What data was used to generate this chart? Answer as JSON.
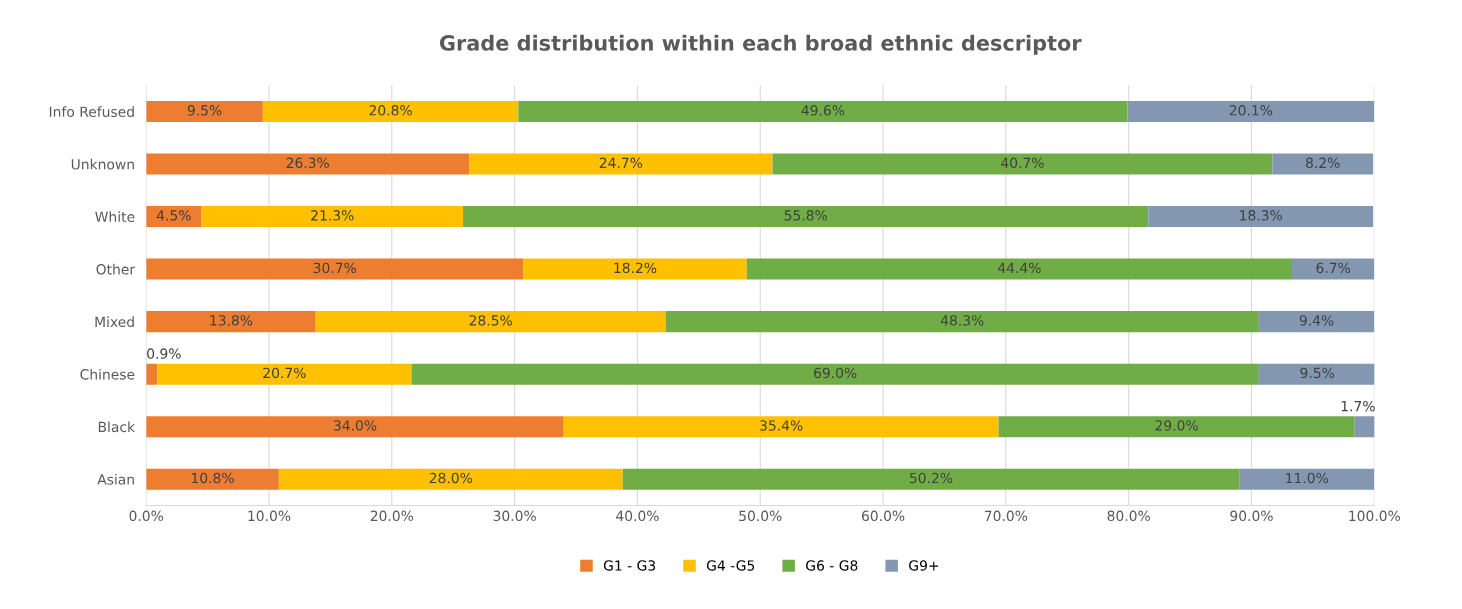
{
  "chart_data": {
    "type": "bar",
    "orientation": "horizontal",
    "stacked": true,
    "title": "Grade distribution within each broad ethnic descriptor",
    "categories": [
      "Info Refused",
      "Unknown",
      "White",
      "Other",
      "Mixed",
      "Chinese",
      "Black",
      "Asian"
    ],
    "series": [
      {
        "name": "G1 - G3",
        "color": "#ed7d31",
        "values": [
          9.5,
          26.3,
          4.5,
          30.7,
          13.8,
          0.9,
          34.0,
          10.8
        ],
        "value_labels": [
          "9.5%",
          "26.3%",
          "4.5%",
          "30.7%",
          "13.8%",
          "0.9%",
          "34.0%",
          "10.8%"
        ]
      },
      {
        "name": "G4 -G5",
        "color": "#ffc000",
        "values": [
          20.8,
          24.7,
          21.3,
          18.2,
          28.5,
          20.7,
          35.4,
          28.0
        ],
        "value_labels": [
          "20.8%",
          "24.7%",
          "21.3%",
          "18.2%",
          "28.5%",
          "20.7%",
          "35.4%",
          "28.0%"
        ]
      },
      {
        "name": "G6 - G8",
        "color": "#70ad47",
        "values": [
          49.6,
          40.7,
          55.8,
          44.4,
          48.3,
          69.0,
          29.0,
          50.2
        ],
        "value_labels": [
          "49.6%",
          "40.7%",
          "55.8%",
          "44.4%",
          "48.3%",
          "69.0%",
          "29.0%",
          "50.2%"
        ]
      },
      {
        "name": "G9+",
        "color": "#8497b0",
        "values": [
          20.1,
          8.2,
          18.3,
          6.7,
          9.4,
          9.5,
          1.7,
          11.0
        ],
        "value_labels": [
          "20.1%",
          "8.2%",
          "18.3%",
          "6.7%",
          "9.4%",
          "9.5%",
          "1.7%",
          "11.0%"
        ]
      }
    ],
    "xlim": [
      0,
      100
    ],
    "xticks": [
      {
        "value": 0,
        "label": "0.0%"
      },
      {
        "value": 10,
        "label": "10.0%"
      },
      {
        "value": 20,
        "label": "20.0%"
      },
      {
        "value": 30,
        "label": "30.0%"
      },
      {
        "value": 40,
        "label": "40.0%"
      },
      {
        "value": 50,
        "label": "50.0%"
      },
      {
        "value": 60,
        "label": "60.0%"
      },
      {
        "value": 70,
        "label": "70.0%"
      },
      {
        "value": 80,
        "label": "80.0%"
      },
      {
        "value": 90,
        "label": "90.0%"
      },
      {
        "value": 100,
        "label": "100.0%"
      }
    ],
    "grid": "x",
    "legend": "bottom"
  }
}
